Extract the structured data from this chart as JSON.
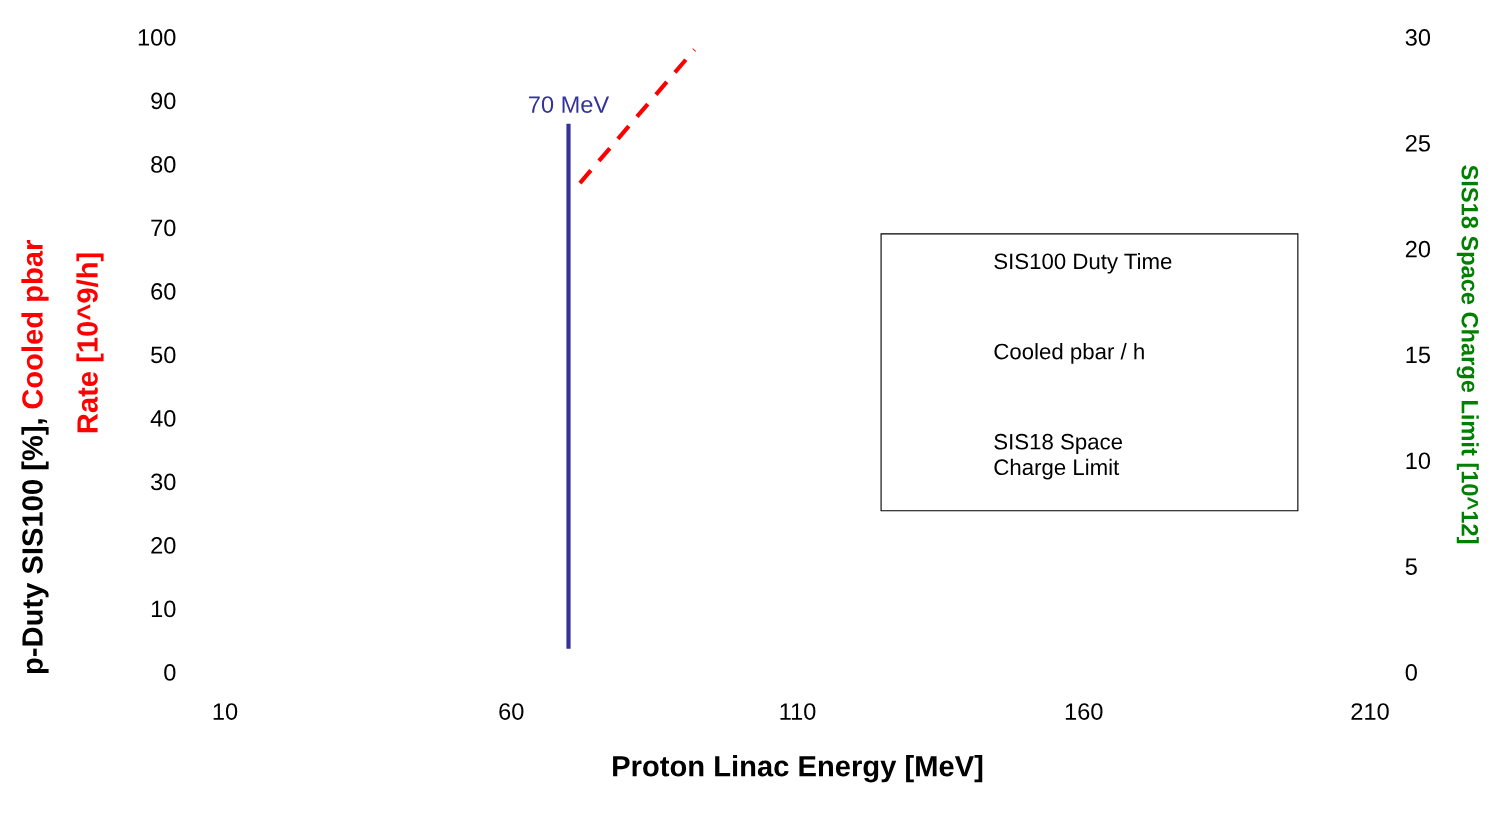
{
  "chart_data": {
    "type": "line",
    "xlabel": "Proton Linac Energy [MeV]",
    "ylabel": [
      "p-Duty SIS100 [%], ",
      "Cooled pbar",
      "Rate [10^9/h]"
    ],
    "y2label": "SIS18 Space Charge Limit [10^12]",
    "xlim": [
      10,
      210
    ],
    "xticks": [
      10,
      60,
      110,
      160,
      210
    ],
    "ylim": [
      0,
      100
    ],
    "yticks": [
      0,
      10,
      20,
      30,
      40,
      50,
      60,
      70,
      80,
      90,
      100
    ],
    "y2lim": [
      0,
      30
    ],
    "y2ticks": [
      0,
      5,
      10,
      15,
      20,
      25,
      30
    ],
    "series": [
      {
        "color": "#333399",
        "x": [
          70,
          70
        ],
        "values": [
          4,
          86
        ],
        "line_style": "solid"
      },
      {
        "color": "#ff0000",
        "x": [
          72,
          92
        ],
        "values": [
          77,
          98
        ],
        "line_style": "dashed"
      }
    ],
    "annotations": [
      {
        "text": "70 MeV",
        "x": 70,
        "y": 86
      },
      "SIS100 Duty Time",
      "Cooled pbar / h",
      "SIS18 Space\nCharge Limit"
    ],
    "grid": false
  }
}
